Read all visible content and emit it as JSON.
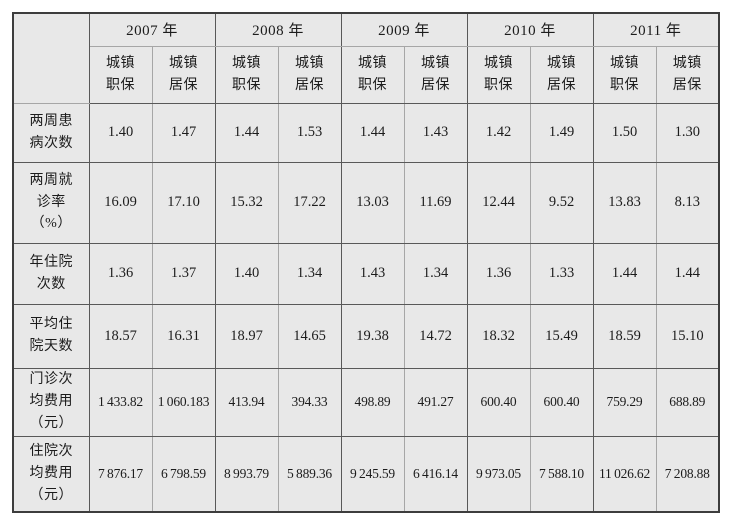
{
  "table": {
    "corner_label": "",
    "year_groups": [
      {
        "label": "2007 年"
      },
      {
        "label": "2008 年"
      },
      {
        "label": "2009 年"
      },
      {
        "label": "2010 年"
      },
      {
        "label": "2011 年"
      }
    ],
    "sub_headers": [
      "城镇\n职保",
      "城镇\n居保",
      "城镇\n职保",
      "城镇\n居保",
      "城镇\n职保",
      "城镇\n居保",
      "城镇\n职保",
      "城镇\n居保",
      "城镇\n职保",
      "城镇\n居保"
    ],
    "rows": [
      {
        "label": "两周患\n病次数",
        "values": [
          "1.40",
          "1.47",
          "1.44",
          "1.53",
          "1.44",
          "1.43",
          "1.42",
          "1.49",
          "1.50",
          "1.30"
        ]
      },
      {
        "label": "两周就\n诊率\n（%）",
        "values": [
          "16.09",
          "17.10",
          "15.32",
          "17.22",
          "13.03",
          "11.69",
          "12.44",
          "9.52",
          "13.83",
          "8.13"
        ]
      },
      {
        "label": "年住院\n次数",
        "values": [
          "1.36",
          "1.37",
          "1.40",
          "1.34",
          "1.43",
          "1.34",
          "1.36",
          "1.33",
          "1.44",
          "1.44"
        ]
      },
      {
        "label": "平均住\n院天数",
        "values": [
          "18.57",
          "16.31",
          "18.97",
          "14.65",
          "19.38",
          "14.72",
          "18.32",
          "15.49",
          "18.59",
          "15.10"
        ]
      },
      {
        "label": "门诊次\n均费用\n（元）",
        "values": [
          "1 433.82",
          "1 060.183",
          "413.94",
          "394.33",
          "498.89",
          "491.27",
          "600.40",
          "600.40",
          "759.29",
          "688.89"
        ]
      },
      {
        "label": "住院次\n均费用\n（元）",
        "values": [
          "7 876.17",
          "6 798.59",
          "8 993.79",
          "5 889.36",
          "9 245.59",
          "6 416.14",
          "9 973.05",
          "7 588.10",
          "11 026.62",
          "7 208.88"
        ]
      }
    ]
  },
  "colors": {
    "page_bg": "#ffffff",
    "cell_bg": "#e8e8e8",
    "outer_border": "#3d3d3d",
    "grid_dark": "#585858",
    "grid_light": "#a6a6a6",
    "text": "#1c1c1c"
  }
}
